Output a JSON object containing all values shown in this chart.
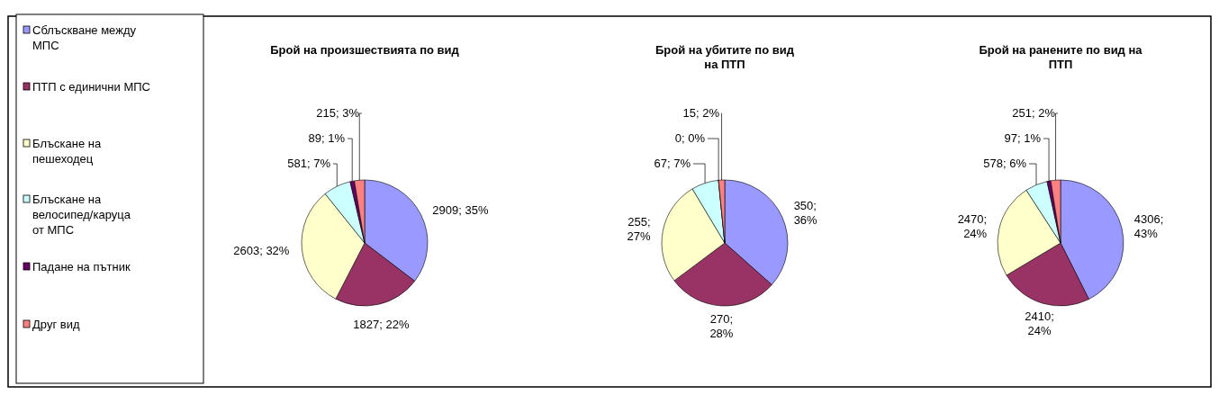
{
  "chart_data": [
    {
      "type": "pie",
      "title": "Брой на произшествията по вид",
      "categories": [
        "Сблъскване между МПС",
        "ПТП с единични МПС",
        "Блъскане на пешеходец",
        "Блъскане на велосипед/каруца от МПС",
        "Падане на пътник",
        "Друг вид"
      ],
      "values": [
        2909,
        1827,
        2603,
        581,
        89,
        215
      ],
      "colors": [
        "#9999ff",
        "#993366",
        "#ffffcc",
        "#ccffff",
        "#660066",
        "#ff8080"
      ],
      "value_labels": [
        "2909; 35%",
        "1827; 22%",
        "2603; 32%",
        "581; 7%",
        "89; 1%",
        "215; 3%"
      ],
      "legend": "left"
    },
    {
      "type": "pie",
      "title": "Брой на убитите по вид на ПТП",
      "categories": [
        null,
        null,
        null,
        null,
        null,
        null
      ],
      "values": [
        350,
        270,
        255,
        67,
        0,
        15
      ],
      "colors": [
        "#9999ff",
        "#993366",
        "#ffffcc",
        "#ccffff",
        "#660066",
        "#ff8080"
      ],
      "value_labels": [
        "350; 36%",
        "270; 28%",
        "255; 27%",
        "67; 7%",
        "0; 0%",
        "15; 2%"
      ]
    },
    {
      "type": "pie",
      "title": "Брой на ранените по вид на ПТП",
      "categories": [
        null,
        null,
        null,
        null,
        null,
        null
      ],
      "values": [
        4306,
        2410,
        2470,
        578,
        97,
        251
      ],
      "colors": [
        "#9999ff",
        "#993366",
        "#ffffcc",
        "#ccffff",
        "#660066",
        "#ff8080"
      ],
      "value_labels": [
        "4306; 43%",
        "2410; 24%",
        "2470; 24%",
        "578; 6%",
        "97; 1%",
        "251; 2%"
      ]
    }
  ]
}
